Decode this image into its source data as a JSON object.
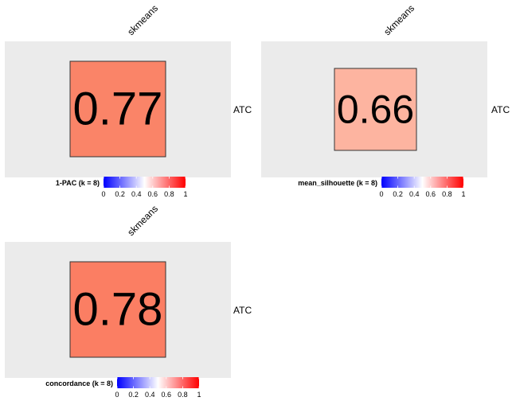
{
  "colors": {
    "panel_bg": "#ebebeb",
    "cell_border": "#333333",
    "scale_low": "#0000ff",
    "scale_mid": "#ffffff",
    "scale_high": "#ff0000"
  },
  "chart_data": [
    {
      "type": "heatmap",
      "column_label": "skmeans",
      "row_label": "ATC",
      "value": 0.77,
      "value_label": "0.77",
      "fill": "#fa8468",
      "legend": {
        "title": "1-PAC (k = 8)",
        "range": [
          0,
          1
        ],
        "ticks": [
          "0",
          "0.2",
          "0.4",
          "0.6",
          "0.8",
          "1"
        ]
      }
    },
    {
      "type": "heatmap",
      "column_label": "skmeans",
      "row_label": "ATC",
      "value": 0.66,
      "value_label": "0.66",
      "fill": "#fdb4a0",
      "legend": {
        "title": "mean_silhouette (k = 8)",
        "range": [
          0,
          1
        ],
        "ticks": [
          "0",
          "0.2",
          "0.4",
          "0.6",
          "0.8",
          "1"
        ]
      }
    },
    {
      "type": "heatmap",
      "column_label": "skmeans",
      "row_label": "ATC",
      "value": 0.78,
      "value_label": "0.78",
      "fill": "#fb7e63",
      "legend": {
        "title": "concordance (k = 8)",
        "range": [
          0,
          1
        ],
        "ticks": [
          "0",
          "0.2",
          "0.4",
          "0.6",
          "0.8",
          "1"
        ]
      }
    }
  ]
}
